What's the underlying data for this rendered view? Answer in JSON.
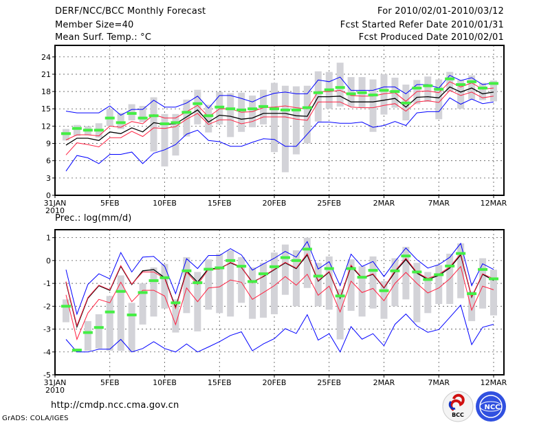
{
  "header": {
    "title": "DERF/NCC/BCC Monthly Forecast",
    "member_size": "Member Size=40",
    "variable_top": "Mean Surf. Temp.: °C",
    "period": "For 2010/02/01-2010/03/12",
    "started": "Fcst Started Refer Date 2010/01/31",
    "produced": "Fcst Produced Date 2010/02/01"
  },
  "footer": {
    "url": "http://cmdp.ncc.cma.gov.cn",
    "credit": "GrADS: COLA/IGES",
    "logo_bcc": "BCC",
    "logo_ncc": "NCC"
  },
  "colors": {
    "mean": "#000000",
    "spread": "#ff2040",
    "extreme": "#0000ff",
    "obs": "#44ee44",
    "range": "#d3d3d8"
  },
  "chart_data": [
    {
      "type": "line",
      "title": "Mean Surf. Temp.: °C",
      "xlabel": "",
      "ylabel": "",
      "x_ticks": [
        "31JAN",
        "5FEB",
        "10FEB",
        "15FEB",
        "20FEB",
        "25FEB",
        "2MAR",
        "7MAR",
        "12MAR"
      ],
      "x_year": "2010",
      "xlim": [
        0,
        40
      ],
      "ylim": [
        0,
        26
      ],
      "y_ticks": [
        0,
        3,
        6,
        9,
        12,
        15,
        18,
        21,
        24
      ],
      "grid": true,
      "days": [
        1,
        2,
        3,
        4,
        5,
        6,
        7,
        8,
        9,
        10,
        11,
        12,
        13,
        14,
        15,
        16,
        17,
        18,
        19,
        20,
        21,
        22,
        23,
        24,
        25,
        26,
        27,
        28,
        29,
        30,
        31,
        32,
        33,
        34,
        35,
        36,
        37,
        38,
        39,
        40
      ],
      "series": [
        {
          "name": "ensemble-max",
          "color": "extreme",
          "values": [
            14.6,
            14.3,
            14.3,
            14.3,
            15.5,
            13.9,
            14.9,
            14.9,
            16.5,
            15.3,
            15.3,
            16.0,
            17.2,
            15.1,
            17.3,
            17.3,
            16.8,
            16.2,
            17.1,
            17.7,
            17.9,
            17.6,
            17.6,
            20.0,
            19.7,
            20.5,
            18.2,
            18.2,
            18.2,
            18.8,
            18.8,
            17.6,
            19.2,
            19.2,
            18.6,
            20.8,
            19.9,
            20.4,
            19.2,
            19.5
          ]
        },
        {
          "name": "mean-plus-spread",
          "color": "spread",
          "values": [
            9.6,
            10.5,
            10.5,
            10.3,
            12.0,
            11.8,
            12.8,
            12.4,
            14.0,
            13.4,
            13.4,
            14.5,
            15.6,
            13.6,
            15.0,
            15.0,
            14.4,
            14.5,
            15.2,
            15.3,
            15.5,
            15.2,
            15.0,
            18.0,
            18.0,
            18.2,
            17.3,
            17.2,
            17.2,
            17.6,
            17.8,
            16.3,
            18.0,
            18.1,
            17.8,
            19.7,
            18.8,
            19.5,
            18.4,
            18.6
          ]
        },
        {
          "name": "ensemble-mean",
          "color": "mean",
          "values": [
            8.7,
            9.9,
            9.9,
            9.5,
            11.0,
            10.7,
            11.7,
            11.0,
            12.6,
            12.3,
            12.4,
            13.6,
            14.8,
            12.7,
            13.9,
            13.7,
            13.2,
            13.4,
            14.2,
            14.2,
            14.2,
            13.8,
            13.7,
            17.1,
            17.1,
            17.2,
            16.2,
            16.2,
            16.2,
            16.5,
            16.8,
            15.3,
            17.0,
            17.1,
            16.9,
            18.8,
            17.9,
            18.6,
            17.6,
            17.9
          ]
        },
        {
          "name": "mean-minus-spread",
          "color": "spread",
          "values": [
            7.0,
            9.1,
            8.8,
            8.4,
            10.0,
            10.0,
            11.1,
            10.2,
            11.7,
            11.6,
            11.9,
            13.2,
            14.2,
            12.3,
            13.1,
            13.1,
            12.4,
            12.8,
            13.6,
            13.6,
            13.6,
            13.2,
            13.0,
            16.2,
            16.2,
            16.2,
            15.3,
            15.2,
            15.2,
            15.6,
            15.9,
            14.6,
            16.2,
            16.4,
            16.1,
            18.2,
            17.3,
            17.9,
            16.9,
            17.2
          ]
        },
        {
          "name": "ensemble-min",
          "color": "extreme",
          "values": [
            4.2,
            6.9,
            6.5,
            5.5,
            7.1,
            7.1,
            7.5,
            5.5,
            7.3,
            7.9,
            8.8,
            10.6,
            11.3,
            9.5,
            9.3,
            8.5,
            8.5,
            9.2,
            9.8,
            9.7,
            8.5,
            8.5,
            10.6,
            12.7,
            12.7,
            12.5,
            12.5,
            12.7,
            11.8,
            12.1,
            12.8,
            12.1,
            14.3,
            14.5,
            14.5,
            16.9,
            15.8,
            16.7,
            15.9,
            16.2
          ]
        }
      ],
      "observed": [
        10.7,
        11.6,
        11.3,
        11.3,
        13.4,
        12.6,
        14.2,
        13.4,
        13.8,
        12.4,
        12.6,
        14.4,
        15.9,
        13.8,
        15.3,
        15.0,
        14.8,
        15.0,
        15.4,
        15.0,
        14.8,
        14.8,
        15.2,
        17.8,
        18.3,
        18.7,
        17.6,
        17.8,
        17.4,
        18.2,
        18.0,
        16.0,
        18.6,
        19.0,
        18.4,
        20.2,
        19.2,
        19.7,
        18.6,
        19.4
      ],
      "range_low": [
        9.5,
        10.3,
        10.4,
        10.0,
        12.0,
        11.5,
        13.0,
        12.7,
        7.6,
        5.0,
        6.9,
        10.2,
        12.3,
        10.9,
        12.3,
        10.1,
        11.0,
        11.8,
        12.3,
        7.5,
        4.0,
        7.1,
        9.0,
        12.8,
        15.0,
        15.4,
        15.4,
        15.2,
        11.0,
        14.0,
        15.2,
        13.0,
        15.8,
        16.2,
        13.2,
        18.0,
        15.0,
        16.6,
        16.5,
        16.3
      ],
      "range_high": [
        11.5,
        12.2,
        12.0,
        12.5,
        15.0,
        14.3,
        15.8,
        15.5,
        17.0,
        14.1,
        14.1,
        16.6,
        18.3,
        15.7,
        17.9,
        17.7,
        17.8,
        17.3,
        18.3,
        19.5,
        19.0,
        18.9,
        19.0,
        21.5,
        21.4,
        23.0,
        20.5,
        20.5,
        20.1,
        21.0,
        20.4,
        19.2,
        20.0,
        20.6,
        20.1,
        21.4,
        20.0,
        20.8,
        19.5,
        19.9
      ]
    },
    {
      "type": "line",
      "title": "Prec.: log(mm/d)",
      "xlabel": "",
      "ylabel": "",
      "x_ticks": [
        "31JAN",
        "5FEB",
        "10FEB",
        "15FEB",
        "20FEB",
        "25FEB",
        "2MAR",
        "7MAR",
        "12MAR"
      ],
      "x_year": "2010",
      "xlim": [
        0,
        40
      ],
      "ylim": [
        -5,
        1.35
      ],
      "y_ticks": [
        -5,
        -4,
        -3,
        -2,
        -1,
        0,
        1
      ],
      "grid": true,
      "days": [
        1,
        2,
        3,
        4,
        5,
        6,
        7,
        8,
        9,
        10,
        11,
        12,
        13,
        14,
        15,
        16,
        17,
        18,
        19,
        20,
        21,
        22,
        23,
        24,
        25,
        26,
        27,
        28,
        29,
        30,
        31,
        32,
        33,
        34,
        35,
        36,
        37,
        38,
        39,
        40
      ],
      "series": [
        {
          "name": "ensemble-max",
          "color": "extreme",
          "values": [
            -0.4,
            -2.35,
            -1.05,
            -0.58,
            -0.8,
            0.35,
            -0.5,
            0.15,
            0.18,
            -0.25,
            -1.45,
            0.08,
            -0.35,
            0.22,
            0.22,
            0.52,
            0.25,
            -0.42,
            -0.15,
            0.1,
            0.4,
            0.15,
            0.83,
            -0.37,
            -0.05,
            -1.1,
            0.28,
            -0.26,
            -0.04,
            -0.7,
            -0.04,
            0.55,
            0.04,
            -0.33,
            -0.18,
            0.14,
            0.75,
            -1.1,
            -0.14,
            -0.39
          ]
        },
        {
          "name": "mean-plus-spread",
          "color": "spread",
          "values": [
            -1.5,
            -3.45,
            -2.3,
            -1.7,
            -1.85,
            -0.95,
            -1.8,
            -1.3,
            -1.3,
            -1.55,
            -2.8,
            -1.2,
            -1.8,
            -1.2,
            -1.15,
            -0.85,
            -0.95,
            -1.7,
            -1.4,
            -1.1,
            -0.7,
            -1.08,
            -0.6,
            -1.52,
            -1.12,
            -2.25,
            -0.9,
            -1.4,
            -1.22,
            -1.76,
            -1.0,
            -0.52,
            -1.0,
            -1.42,
            -1.2,
            -0.8,
            -0.26,
            -2.17,
            -1.12,
            -1.28
          ]
        },
        {
          "name": "ensemble-mean",
          "color": "mean",
          "values": [
            -0.95,
            -2.9,
            -1.65,
            -1.1,
            -1.3,
            -0.25,
            -1.05,
            -0.45,
            -0.4,
            -0.75,
            -2.05,
            -0.45,
            -0.95,
            -0.35,
            -0.35,
            -0.1,
            -0.3,
            -0.95,
            -0.7,
            -0.4,
            -0.1,
            -0.35,
            0.25,
            -0.9,
            -0.5,
            -1.65,
            -0.25,
            -0.77,
            -0.6,
            -1.2,
            -0.5,
            0.05,
            -0.55,
            -0.83,
            -0.65,
            -0.33,
            0.25,
            -1.6,
            -0.6,
            -0.87
          ]
        },
        {
          "name": "mean-upper-red",
          "color": "spread",
          "values": [
            -0.92,
            -2.85,
            -1.62,
            -1.08,
            -1.28,
            -0.22,
            -1.03,
            -0.5,
            -0.5,
            -0.78,
            -2.1,
            -0.5,
            -1.05,
            -0.38,
            -0.38,
            -0.08,
            -0.28,
            -0.98,
            -0.68,
            -0.38,
            -0.08,
            -0.33,
            0.3,
            -0.88,
            -0.48,
            -1.62,
            -0.2,
            -0.75,
            -0.58,
            -1.18,
            -0.45,
            0.1,
            -0.52,
            -0.78,
            -0.6,
            -0.28,
            0.3,
            -1.58,
            -0.58,
            -0.8
          ]
        },
        {
          "name": "ensemble-min",
          "color": "extreme",
          "values": [
            -3.45,
            -4.0,
            -4.0,
            -3.88,
            -3.88,
            -3.45,
            -4.0,
            -3.85,
            -3.55,
            -3.85,
            -4.0,
            -3.65,
            -4.0,
            -3.78,
            -3.55,
            -3.28,
            -3.12,
            -3.95,
            -3.65,
            -3.42,
            -2.98,
            -3.19,
            -2.37,
            -3.48,
            -3.2,
            -4.0,
            -2.89,
            -3.44,
            -3.2,
            -3.73,
            -2.79,
            -2.34,
            -2.86,
            -3.14,
            -3.02,
            -2.49,
            -1.95,
            -3.68,
            -2.92,
            -2.79
          ]
        }
      ],
      "observed": [
        -2.0,
        -3.92,
        -3.15,
        -2.93,
        -2.25,
        -1.35,
        -2.38,
        -1.4,
        -0.88,
        -0.75,
        -1.85,
        -0.45,
        -0.97,
        -0.38,
        -0.32,
        0.0,
        -0.25,
        -0.92,
        -0.58,
        -0.27,
        0.13,
        0.0,
        0.5,
        -0.68,
        -0.35,
        -1.55,
        -0.35,
        -0.73,
        -0.43,
        -1.32,
        -0.45,
        0.2,
        -0.5,
        -0.83,
        -0.62,
        -0.24,
        0.31,
        -1.45,
        -0.39,
        -0.8
      ],
      "range_low": [
        -2.7,
        -4.0,
        -3.95,
        -3.85,
        -3.95,
        -3.95,
        -4.0,
        -2.8,
        -2.45,
        -2.1,
        -3.15,
        -2.3,
        -3.1,
        -2.15,
        -2.3,
        -2.45,
        -1.85,
        -2.55,
        -2.5,
        -2.35,
        -1.5,
        -2.0,
        -1.2,
        -2.0,
        -2.15,
        -3.45,
        -2.2,
        -2.45,
        -2.1,
        -2.55,
        -2.0,
        -1.7,
        -2.7,
        -2.3,
        -1.9,
        -1.9,
        -1.65,
        -2.65,
        -2.1,
        -2.4
      ],
      "range_high": [
        -1.7,
        -3.85,
        -2.65,
        -2.35,
        -1.55,
        -0.65,
        -1.85,
        -1.0,
        -0.3,
        -0.15,
        -1.7,
        0.15,
        -0.5,
        0.05,
        0.3,
        0.45,
        0.15,
        -0.3,
        -0.1,
        0.35,
        0.7,
        0.45,
        1.0,
        -0.1,
        0.18,
        -1.25,
        0.05,
        -0.25,
        0.18,
        -0.9,
        0.1,
        0.6,
        -0.1,
        -0.5,
        -0.2,
        0.3,
        0.75,
        -1.35,
        0.1,
        -0.4
      ]
    }
  ]
}
